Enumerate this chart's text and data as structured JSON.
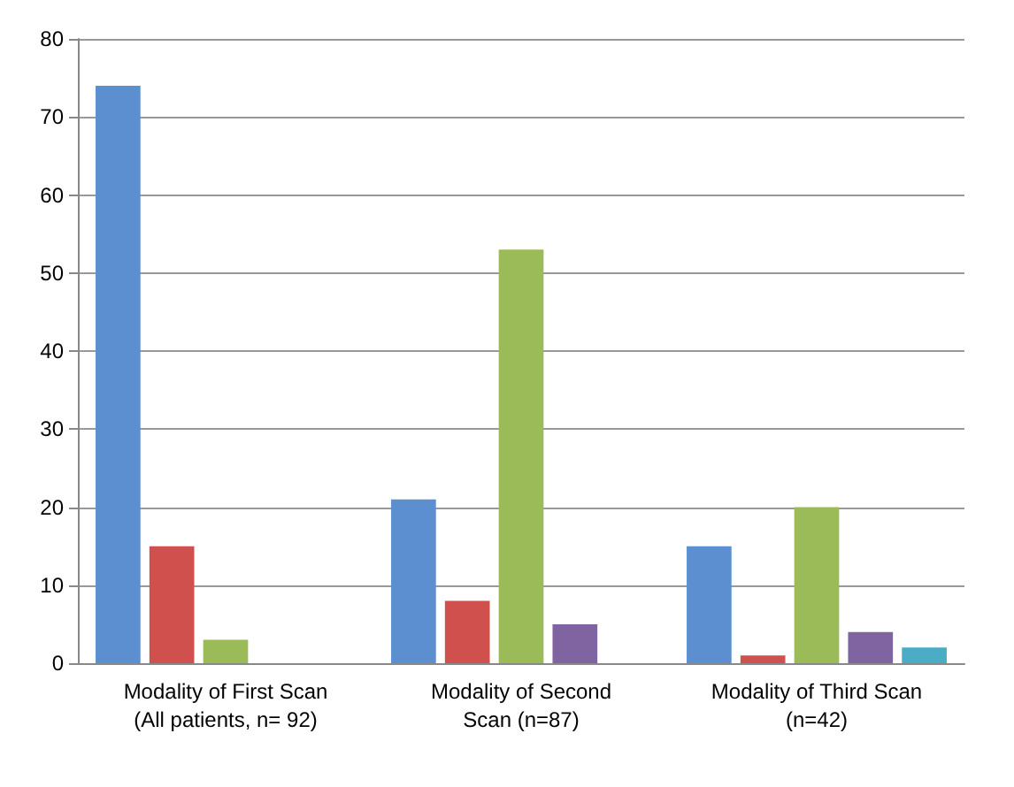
{
  "chart_data": {
    "type": "bar",
    "categories": [
      "Modality of First Scan\n(All patients, n= 92)",
      "Modality of Second\nScan (n=87)",
      "Modality of Third Scan\n(n=42)"
    ],
    "series": [
      {
        "color": "#5b8fcf",
        "values": [
          74,
          21,
          15
        ]
      },
      {
        "color": "#d0504d",
        "values": [
          15,
          8,
          1
        ]
      },
      {
        "color": "#9bbb59",
        "values": [
          3,
          53,
          20
        ]
      },
      {
        "color": "#8064a2",
        "values": [
          null,
          5,
          4
        ]
      },
      {
        "color": "#4bacc6",
        "values": [
          null,
          null,
          2
        ]
      }
    ],
    "ylim": [
      0,
      80
    ],
    "yticks": [
      0,
      10,
      20,
      30,
      40,
      50,
      60,
      70,
      80
    ],
    "grid": "y"
  }
}
